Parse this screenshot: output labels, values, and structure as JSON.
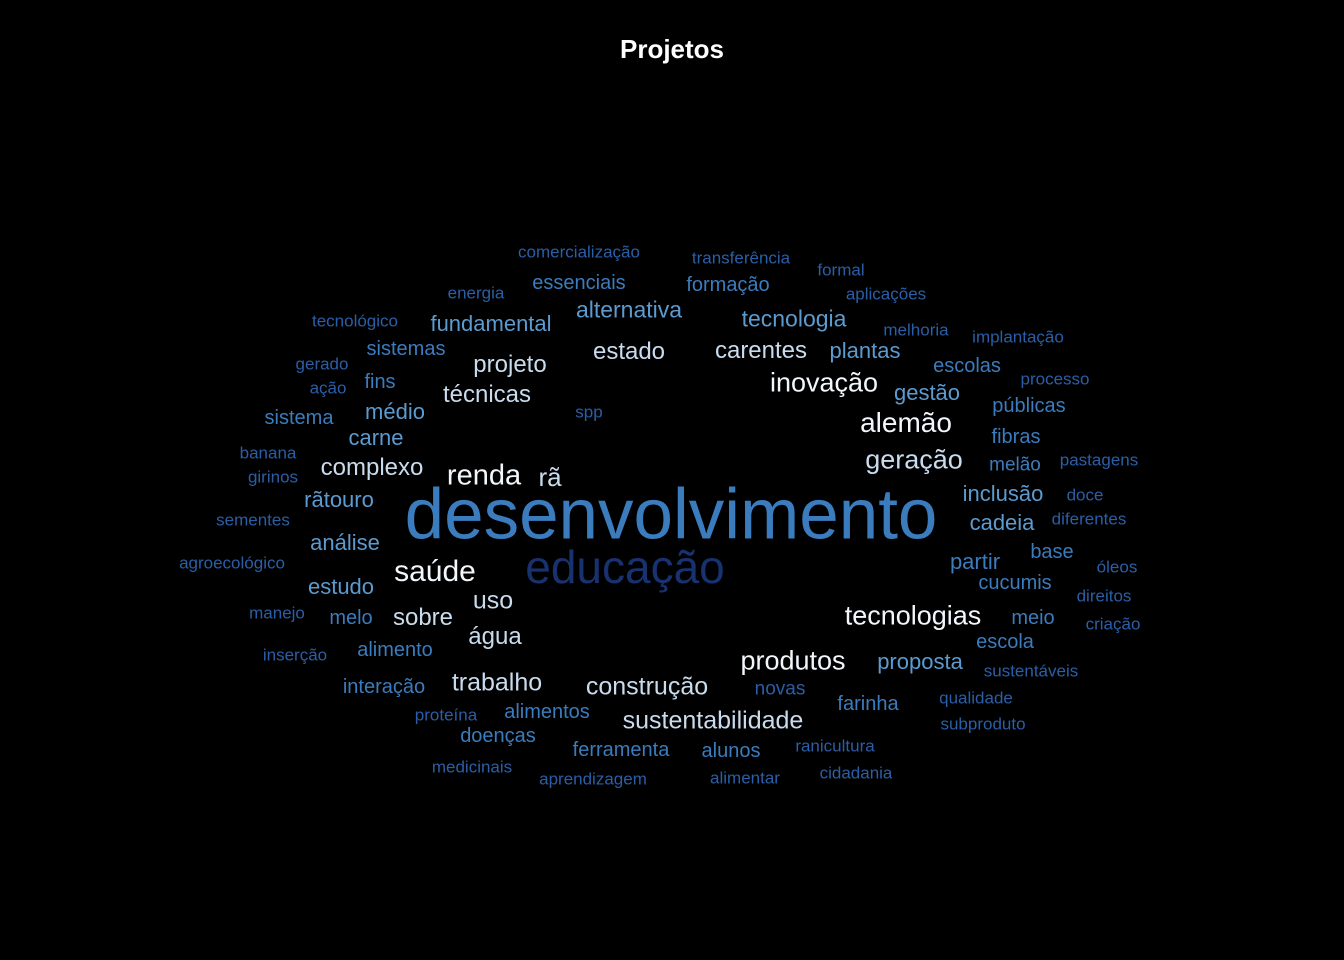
{
  "title": "Projetos",
  "colors": {
    "background": "#000000",
    "title": "#ffffff",
    "white": "#f2f7fc",
    "light": "#c9dcee",
    "mid": "#5b9bd0",
    "blue": "#3a7cbd",
    "dark": "#2a5ea6",
    "deep": "#1c3f86",
    "navy": "#17326f"
  },
  "words": [
    {
      "text": "desenvolvimento",
      "tone": "blue"
    },
    {
      "text": "educação",
      "tone": "navy"
    },
    {
      "text": "saúde",
      "tone": "white"
    },
    {
      "text": "renda",
      "tone": "white"
    },
    {
      "text": "rã",
      "tone": "light"
    },
    {
      "text": "alemão",
      "tone": "white"
    },
    {
      "text": "geração",
      "tone": "light"
    },
    {
      "text": "tecnologias",
      "tone": "white"
    },
    {
      "text": "produtos",
      "tone": "white"
    },
    {
      "text": "inovação",
      "tone": "white"
    },
    {
      "text": "sustentabilidade",
      "tone": "light"
    },
    {
      "text": "construção",
      "tone": "light"
    },
    {
      "text": "trabalho",
      "tone": "light"
    },
    {
      "text": "uso",
      "tone": "light"
    },
    {
      "text": "sobre",
      "tone": "light"
    },
    {
      "text": "água",
      "tone": "light"
    },
    {
      "text": "complexo",
      "tone": "light"
    },
    {
      "text": "técnicas",
      "tone": "light"
    },
    {
      "text": "projeto",
      "tone": "light"
    },
    {
      "text": "estado",
      "tone": "light"
    },
    {
      "text": "carentes",
      "tone": "light"
    },
    {
      "text": "tecnologia",
      "tone": "mid"
    },
    {
      "text": "alternativa",
      "tone": "mid"
    },
    {
      "text": "fundamental",
      "tone": "mid"
    },
    {
      "text": "plantas",
      "tone": "mid"
    },
    {
      "text": "gestão",
      "tone": "mid"
    },
    {
      "text": "inclusão",
      "tone": "mid"
    },
    {
      "text": "cadeia",
      "tone": "mid"
    },
    {
      "text": "partir",
      "tone": "blue"
    },
    {
      "text": "base",
      "tone": "blue"
    },
    {
      "text": "cucumis",
      "tone": "blue"
    },
    {
      "text": "proposta",
      "tone": "mid"
    },
    {
      "text": "meio",
      "tone": "blue"
    },
    {
      "text": "escola",
      "tone": "blue"
    },
    {
      "text": "análise",
      "tone": "mid"
    },
    {
      "text": "rãtouro",
      "tone": "mid"
    },
    {
      "text": "carne",
      "tone": "mid"
    },
    {
      "text": "médio",
      "tone": "mid"
    },
    {
      "text": "estudo",
      "tone": "mid"
    },
    {
      "text": "melo",
      "tone": "blue"
    },
    {
      "text": "alimento",
      "tone": "blue"
    },
    {
      "text": "interação",
      "tone": "blue"
    },
    {
      "text": "alimentos",
      "tone": "blue"
    },
    {
      "text": "doenças",
      "tone": "blue"
    },
    {
      "text": "ferramenta",
      "tone": "blue"
    },
    {
      "text": "alunos",
      "tone": "blue"
    },
    {
      "text": "farinha",
      "tone": "blue"
    },
    {
      "text": "novas",
      "tone": "dark"
    },
    {
      "text": "sistemas",
      "tone": "blue"
    },
    {
      "text": "fins",
      "tone": "blue"
    },
    {
      "text": "sistema",
      "tone": "blue"
    },
    {
      "text": "essenciais",
      "tone": "blue"
    },
    {
      "text": "formação",
      "tone": "blue"
    },
    {
      "text": "escolas",
      "tone": "blue"
    },
    {
      "text": "públicas",
      "tone": "blue"
    },
    {
      "text": "fibras",
      "tone": "blue"
    },
    {
      "text": "melão",
      "tone": "blue"
    },
    {
      "text": "comercialização",
      "tone": "dark"
    },
    {
      "text": "transferência",
      "tone": "dark"
    },
    {
      "text": "formal",
      "tone": "dark"
    },
    {
      "text": "energia",
      "tone": "dark"
    },
    {
      "text": "aplicações",
      "tone": "dark"
    },
    {
      "text": "tecnológico",
      "tone": "dark"
    },
    {
      "text": "melhoria",
      "tone": "dark"
    },
    {
      "text": "implantação",
      "tone": "dark"
    },
    {
      "text": "gerado",
      "tone": "dark"
    },
    {
      "text": "ação",
      "tone": "dark"
    },
    {
      "text": "processo",
      "tone": "dark"
    },
    {
      "text": "spp",
      "tone": "dark"
    },
    {
      "text": "banana",
      "tone": "dark"
    },
    {
      "text": "girinos",
      "tone": "dark"
    },
    {
      "text": "pastagens",
      "tone": "dark"
    },
    {
      "text": "doce",
      "tone": "dark"
    },
    {
      "text": "sementes",
      "tone": "dark"
    },
    {
      "text": "diferentes",
      "tone": "dark"
    },
    {
      "text": "agroecológico",
      "tone": "dark"
    },
    {
      "text": "óleos",
      "tone": "dark"
    },
    {
      "text": "manejo",
      "tone": "dark"
    },
    {
      "text": "direitos",
      "tone": "dark"
    },
    {
      "text": "criação",
      "tone": "dark"
    },
    {
      "text": "inserção",
      "tone": "dark"
    },
    {
      "text": "sustentáveis",
      "tone": "dark"
    },
    {
      "text": "qualidade",
      "tone": "dark"
    },
    {
      "text": "proteína",
      "tone": "dark"
    },
    {
      "text": "subproduto",
      "tone": "dark"
    },
    {
      "text": "ranicultura",
      "tone": "dark"
    },
    {
      "text": "medicinais",
      "tone": "dark"
    },
    {
      "text": "aprendizagem",
      "tone": "dark"
    },
    {
      "text": "alimentar",
      "tone": "dark"
    },
    {
      "text": "cidadania",
      "tone": "dark"
    }
  ]
}
